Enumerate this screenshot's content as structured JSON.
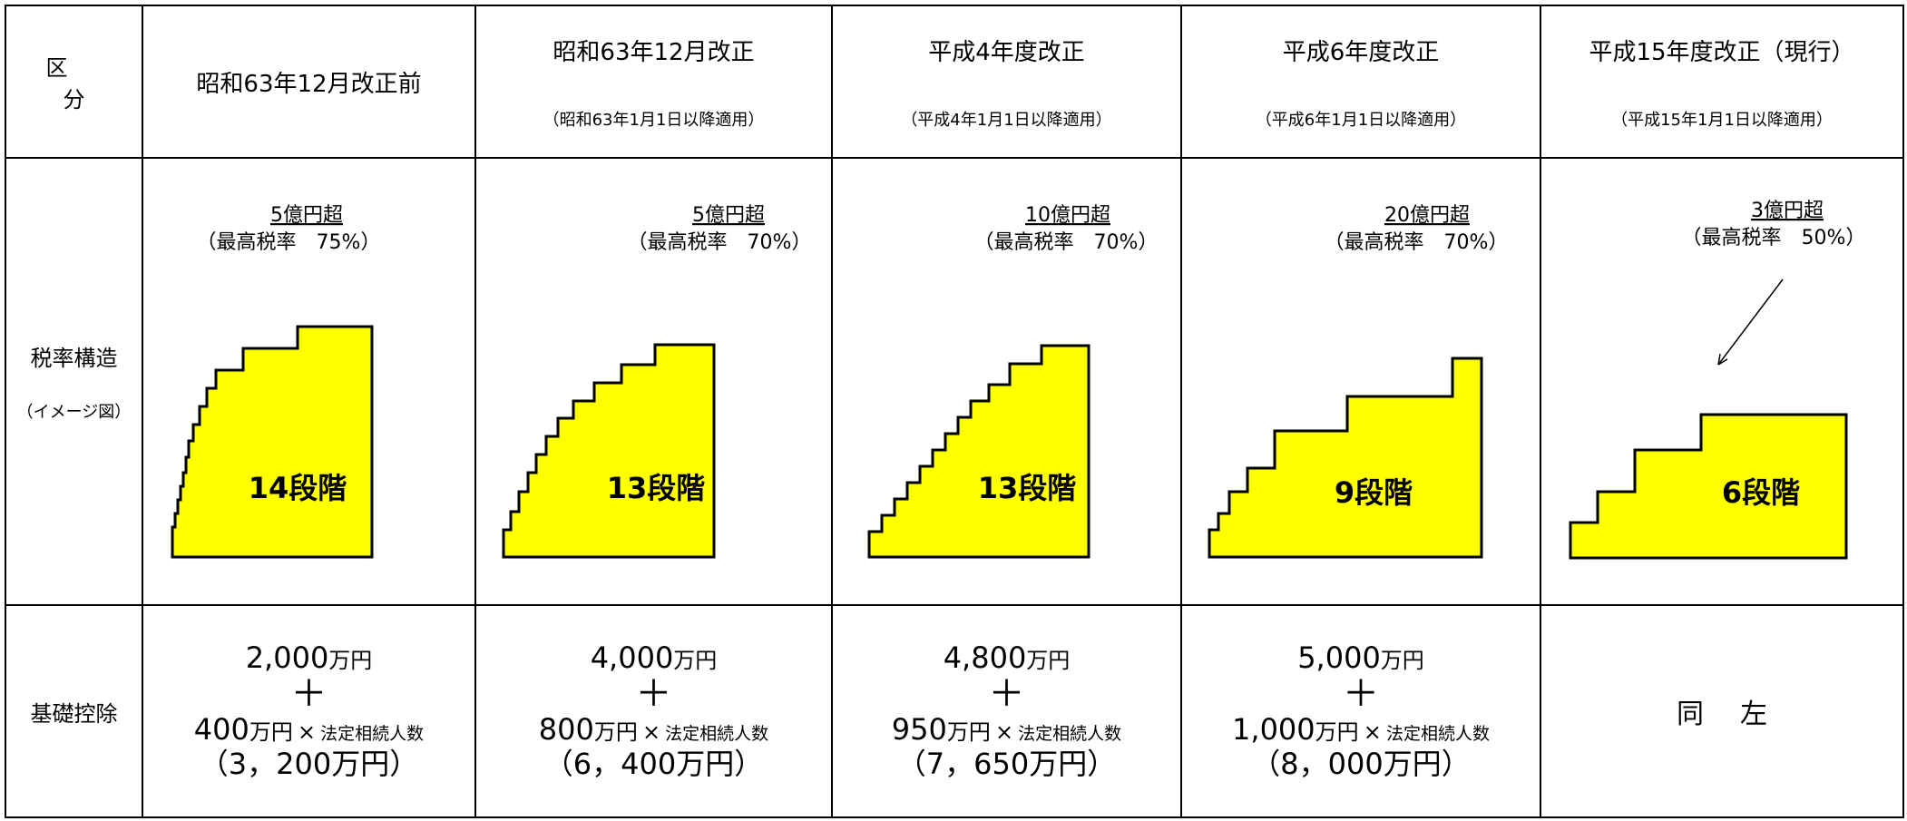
{
  "header": {
    "category_label": "区　分",
    "columns": [
      {
        "title": "昭和63年12月改正前",
        "subtitle": ""
      },
      {
        "title": "昭和63年12月改正",
        "subtitle": "（昭和63年1月1日以降適用）"
      },
      {
        "title": "平成4年度改正",
        "subtitle": "（平成4年1月1日以降適用）"
      },
      {
        "title": "平成6年度改正",
        "subtitle": "（平成6年1月1日以降適用）"
      },
      {
        "title": "平成15年度改正（現行）",
        "subtitle": "（平成15年1月1日以降適用）"
      }
    ]
  },
  "structure_row": {
    "label": "税率構造",
    "sublabel": "（イメージ図）",
    "charts": [
      {
        "threshold": "5億円超",
        "top_rate": "（最高税率　75%）",
        "steps": 14,
        "step_label": "14段階"
      },
      {
        "threshold": "5億円超",
        "top_rate": "（最高税率　70%）",
        "steps": 13,
        "step_label": "13段階"
      },
      {
        "threshold": "10億円超",
        "top_rate": "（最高税率　70%）",
        "steps": 13,
        "step_label": "13段階"
      },
      {
        "threshold": "20億円超",
        "top_rate": "（最高税率　70%）",
        "steps": 9,
        "step_label": "9段階"
      },
      {
        "threshold": "3億円超",
        "top_rate": "（最高税率　50%）",
        "steps": 6,
        "step_label": "6段階"
      }
    ],
    "fill_color": "#ffff00"
  },
  "deduction_row": {
    "label": "基礎控除",
    "plus": "＋",
    "times": "×",
    "heirs": "法定相続人数",
    "unit": "万円",
    "columns": [
      {
        "base": "2,000",
        "per_heir": "400",
        "total": "（3，200万円）"
      },
      {
        "base": "4,000",
        "per_heir": "800",
        "total": "（6，400万円）"
      },
      {
        "base": "4,800",
        "per_heir": "950",
        "total": "（7，650万円）"
      },
      {
        "base": "5,000",
        "per_heir": "1,000",
        "total": "（8，000万円）"
      }
    ],
    "same_as_left": "同左"
  }
}
